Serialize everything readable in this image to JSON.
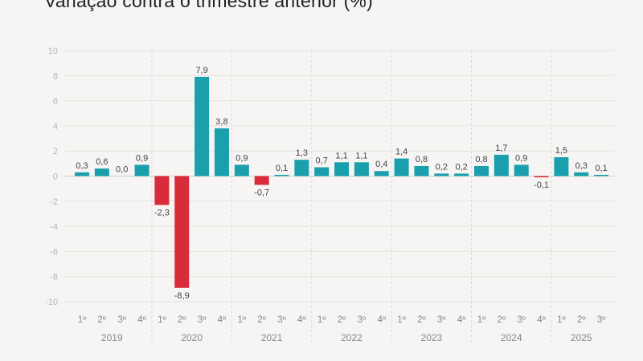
{
  "chart_data": {
    "type": "bar",
    "title": "Variação contra o trimestre anterior (%)",
    "ylim": [
      -10,
      10
    ],
    "yticks": [
      10,
      8,
      6,
      4,
      2,
      0,
      -2,
      -4,
      -6,
      -8,
      -10
    ],
    "grid": true,
    "years": [
      "2019",
      "2020",
      "2021",
      "2022",
      "2023",
      "2024",
      "2025"
    ],
    "quarter_labels": [
      "1º",
      "2º",
      "3º",
      "4º"
    ],
    "categories": [
      "2019 1º",
      "2019 2º",
      "2019 3º",
      "2019 4º",
      "2020 1º",
      "2020 2º",
      "2020 3º",
      "2020 4º",
      "2021 1º",
      "2021 2º",
      "2021 3º",
      "2021 4º",
      "2022 1º",
      "2022 2º",
      "2022 3º",
      "2022 4º",
      "2023 1º",
      "2023 2º",
      "2023 3º",
      "2023 4º",
      "2024 1º",
      "2024 2º",
      "2024 3º",
      "2024 4º",
      "2025 1º",
      "2025 2º",
      "2025 3º"
    ],
    "values": [
      0.3,
      0.6,
      0.0,
      0.9,
      -2.3,
      -8.9,
      7.9,
      3.8,
      0.9,
      -0.7,
      0.1,
      1.3,
      0.7,
      1.1,
      1.1,
      0.4,
      1.4,
      0.8,
      0.2,
      0.2,
      0.8,
      1.7,
      0.9,
      -0.1,
      1.5,
      0.3,
      0.1
    ],
    "data_labels": [
      "0,3",
      "0,6",
      "0,0",
      "0,9",
      "-2,3",
      "-8,9",
      "7,9",
      "3,8",
      "0,9",
      "-0,7",
      "0,1",
      "1,3",
      "0,7",
      "1,1",
      "1,1",
      "0,4",
      "1,4",
      "0,8",
      "0,2",
      "0,2",
      "0,8",
      "1,7",
      "0,9",
      "-0,1",
      "1,5",
      "0,3",
      "0,1"
    ],
    "colors": {
      "positive": "#1a9fad",
      "negative": "#d92b3a"
    }
  }
}
